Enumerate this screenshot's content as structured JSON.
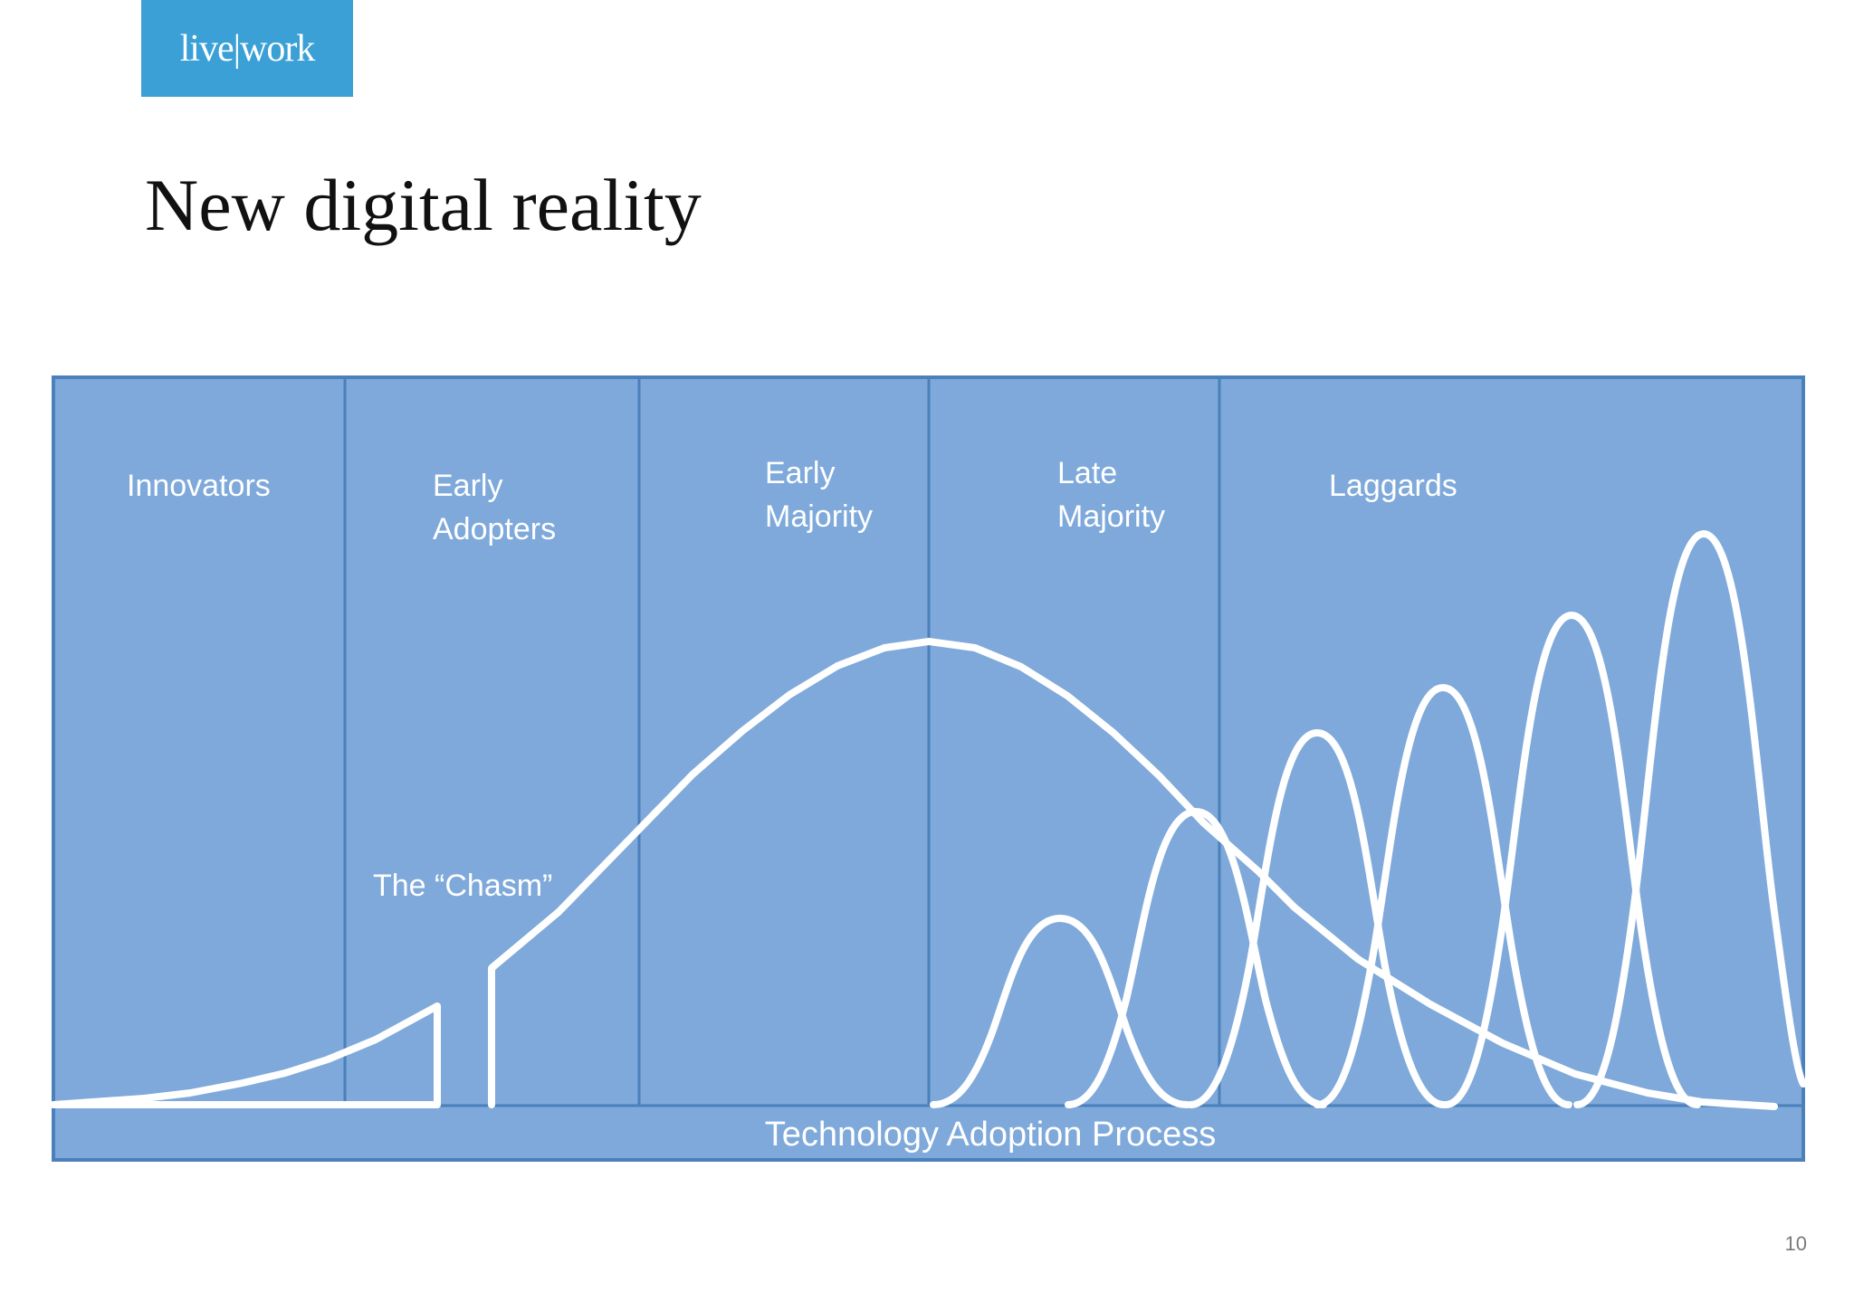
{
  "brand": {
    "logo_text": "live|work",
    "color": "#3aa0d6"
  },
  "slide": {
    "title": "New digital reality",
    "page_number": "10"
  },
  "diagram": {
    "background_color": "#7ea9da",
    "border_color": "#4a80bb",
    "curve_color": "#ffffff",
    "segments": [
      {
        "lines": [
          "Innovators"
        ]
      },
      {
        "lines": [
          "Early",
          "Adopters"
        ]
      },
      {
        "lines": [
          "Early",
          "Majority"
        ]
      },
      {
        "lines": [
          "Late",
          "Majority"
        ]
      },
      {
        "lines": [
          "Laggards"
        ]
      }
    ],
    "chasm_label": "The “Chasm”",
    "axis_label": "Technology Adoption Process"
  }
}
